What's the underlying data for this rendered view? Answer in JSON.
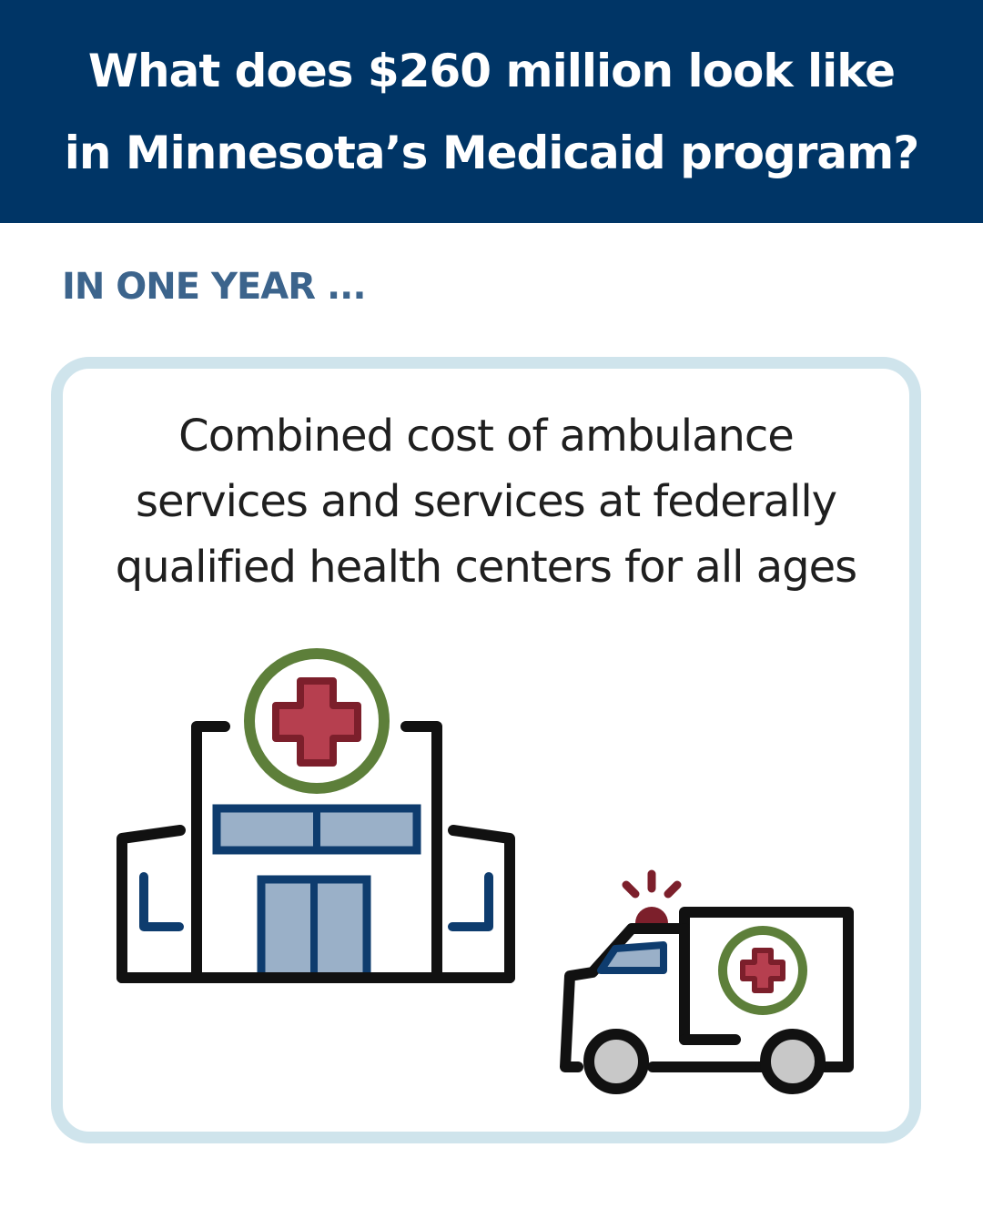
{
  "header": {
    "line1": "What does $260 million look like",
    "line2": "in Minnesota’s Medicaid program?"
  },
  "subhead": "IN ONE YEAR ...",
  "card": {
    "lines": [
      "Combined cost of ambulance",
      "services and services at federally",
      "qualified health centers for all ages"
    ]
  },
  "icons": {
    "hospital": "hospital-building-icon",
    "ambulance": "ambulance-icon"
  },
  "colors": {
    "header_bg": "#003566",
    "subhead": "#3c648c",
    "card_border": "#cfe4ec",
    "icon_green": "#5d7f3a",
    "icon_red": "#b63f4f",
    "icon_maroon": "#7c1f2b",
    "icon_blue": "#0e3c6e",
    "icon_lightblue": "#9ab0c8"
  }
}
